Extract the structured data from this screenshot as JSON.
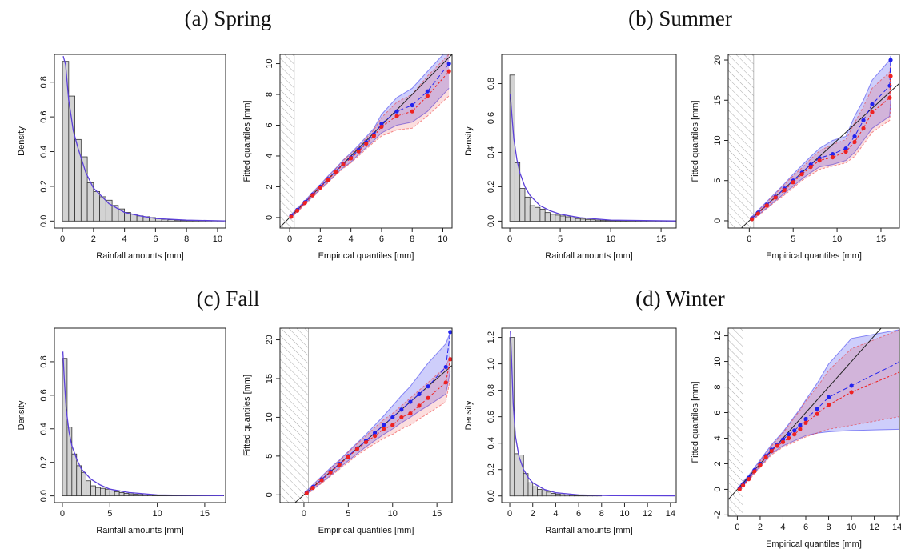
{
  "panels": [
    {
      "title": "(a) Spring"
    },
    {
      "title": "(b) Summer"
    },
    {
      "title": "(c) Fall"
    },
    {
      "title": "(d) Winter"
    }
  ],
  "chart_data": [
    {
      "type": "histogram",
      "xlabel": "Rainfall amounts [mm]",
      "ylabel": "Density",
      "bins": [
        0,
        0.4,
        0.8,
        1.2,
        1.6,
        2,
        2.4,
        2.8,
        3.2,
        3.6,
        4,
        4.4,
        4.8,
        5.2,
        5.6,
        6,
        6.4,
        6.8,
        7.2,
        7.6,
        8,
        8.4,
        8.8,
        9.2,
        9.6,
        10,
        10.4
      ],
      "counts": [
        0.92,
        0.72,
        0.47,
        0.37,
        0.22,
        0.17,
        0.14,
        0.12,
        0.09,
        0.07,
        0.05,
        0.04,
        0.03,
        0.025,
        0.02,
        0.015,
        0.01,
        0.008,
        0.005,
        0.004,
        0.003,
        0.002,
        0.002,
        0.001,
        0.001,
        0.001
      ],
      "color": "#d3d3d3",
      "curve": {
        "color": "#5b3fd9",
        "x": [
          0.05,
          0.2,
          0.4,
          0.7,
          1,
          1.5,
          2,
          3,
          4,
          5,
          6,
          8,
          10.5
        ],
        "values": [
          0.95,
          0.9,
          0.7,
          0.52,
          0.42,
          0.28,
          0.19,
          0.1,
          0.05,
          0.03,
          0.015,
          0.005,
          0.001
        ]
      },
      "xlim": [
        -0.52,
        10.52
      ],
      "ylim": [
        -0.04,
        0.96
      ],
      "xticks": [
        0,
        2,
        4,
        6,
        8,
        10
      ],
      "yticks": [
        {
          "value": 0,
          "label": "0.0"
        },
        {
          "value": 0.2,
          "label": "0.2"
        },
        {
          "value": 0.4,
          "label": "0.4"
        },
        {
          "value": 0.6,
          "label": "0.6"
        },
        {
          "value": 0.8,
          "label": "0.8"
        }
      ]
    },
    {
      "type": "qq",
      "xlabel": "Empirical quantiles [mm]",
      "ylabel": "Fitted quantiles [mm]",
      "threshold": 0.3,
      "x": [
        0.1,
        0.5,
        1,
        1.5,
        2,
        2.5,
        3,
        3.5,
        4,
        4.5,
        5,
        5.5,
        6,
        7,
        8,
        9,
        10.4
      ],
      "series": [
        {
          "color": "#2222ee",
          "values": [
            0.1,
            0.5,
            1,
            1.5,
            2,
            2.5,
            3,
            3.5,
            3.9,
            4.4,
            4.9,
            5.4,
            6.1,
            6.9,
            7.3,
            8.2,
            10.0
          ],
          "lower": [
            0,
            0.4,
            0.9,
            1.35,
            1.85,
            2.3,
            2.8,
            3.25,
            3.6,
            4.1,
            4.55,
            5.0,
            5.5,
            6.0,
            6.2,
            6.9,
            8.4
          ],
          "upper": [
            0.2,
            0.6,
            1.1,
            1.65,
            2.15,
            2.7,
            3.2,
            3.75,
            4.2,
            4.7,
            5.25,
            5.8,
            6.7,
            7.8,
            8.4,
            9.5,
            11.0
          ]
        },
        {
          "color": "#ee2222",
          "values": [
            0.05,
            0.45,
            0.95,
            1.45,
            1.95,
            2.45,
            2.95,
            3.45,
            3.85,
            4.3,
            4.8,
            5.3,
            5.9,
            6.6,
            6.9,
            7.9,
            9.5
          ],
          "lower": [
            0,
            0.35,
            0.85,
            1.3,
            1.8,
            2.25,
            2.75,
            3.2,
            3.55,
            4.0,
            4.45,
            4.9,
            5.3,
            5.7,
            5.8,
            6.6,
            7.9
          ],
          "upper": [
            0.15,
            0.55,
            1.05,
            1.6,
            2.1,
            2.65,
            3.15,
            3.7,
            4.15,
            4.6,
            5.15,
            5.7,
            6.5,
            7.5,
            8.0,
            9.2,
            10.6
          ]
        }
      ],
      "xlim": [
        -0.63,
        10.6
      ],
      "ylim": [
        -0.68,
        10.6
      ],
      "xticks": [
        0,
        2,
        4,
        6,
        8,
        10
      ],
      "yticks": [
        0,
        2,
        4,
        6,
        8,
        10
      ]
    },
    {
      "type": "histogram",
      "xlabel": "Rainfall amounts [mm]",
      "ylabel": "Density",
      "bins": [
        0,
        0.5,
        1,
        1.5,
        2,
        2.5,
        3,
        3.5,
        4,
        4.5,
        5,
        5.5,
        6,
        6.5,
        7,
        7.5,
        8,
        8.5,
        9,
        9.5,
        10,
        10.5,
        11,
        11.5,
        12,
        12.5,
        13,
        13.5,
        14,
        14.5,
        15,
        15.5,
        16,
        16.5
      ],
      "counts": [
        0.85,
        0.34,
        0.19,
        0.14,
        0.09,
        0.08,
        0.07,
        0.05,
        0.04,
        0.035,
        0.03,
        0.025,
        0.02,
        0.015,
        0.012,
        0.01,
        0.008,
        0.006,
        0.005,
        0.004,
        0.003,
        0.003,
        0.002,
        0.002,
        0.002,
        0.001,
        0.001,
        0.001,
        0.001,
        0.001,
        0.001,
        0.001,
        0.001
      ],
      "color": "#d3d3d3",
      "curve": {
        "color": "#5b3fd9",
        "x": [
          0.05,
          0.2,
          0.4,
          0.7,
          1,
          1.5,
          2,
          3,
          4,
          5,
          7,
          10,
          16.5
        ],
        "values": [
          0.74,
          0.62,
          0.48,
          0.36,
          0.28,
          0.2,
          0.15,
          0.09,
          0.06,
          0.04,
          0.02,
          0.006,
          0.001
        ]
      },
      "xlim": [
        -0.8,
        16.5
      ],
      "ylim": [
        -0.04,
        0.97
      ],
      "xticks": [
        0,
        5,
        10,
        15
      ],
      "yticks": [
        {
          "value": 0,
          "label": "0.0"
        },
        {
          "value": 0.2,
          "label": "0.2"
        },
        {
          "value": 0.4,
          "label": "0.4"
        },
        {
          "value": 0.6,
          "label": "0.6"
        },
        {
          "value": 0.8,
          "label": "0.8"
        }
      ]
    },
    {
      "type": "qq",
      "xlabel": "Empirical quantiles [mm]",
      "ylabel": "Fitted quantiles [mm]",
      "threshold": 0.5,
      "x": [
        0.3,
        1,
        2,
        3,
        4,
        5,
        6,
        7,
        8,
        9.5,
        11,
        12,
        13,
        14,
        16,
        16.1
      ],
      "series": [
        {
          "color": "#2222ee",
          "values": [
            0.3,
            1,
            2,
            3,
            4,
            5,
            6,
            7,
            7.8,
            8.3,
            9.0,
            10.5,
            12.5,
            14.5,
            16.8,
            20
          ],
          "lower": [
            0.1,
            0.7,
            1.6,
            2.5,
            3.4,
            4.3,
            5.2,
            6.0,
            6.7,
            7.0,
            7.5,
            8.5,
            10.0,
            11.5,
            13.0,
            15.0
          ],
          "upper": [
            0.5,
            1.3,
            2.4,
            3.5,
            4.6,
            5.8,
            6.9,
            8.0,
            9.0,
            10.0,
            10.5,
            13.0,
            15.0,
            17.5,
            20.0,
            20.5
          ]
        },
        {
          "color": "#ee2222",
          "values": [
            0.2,
            0.9,
            1.9,
            2.9,
            3.8,
            4.8,
            5.8,
            6.7,
            7.5,
            7.9,
            8.6,
            9.8,
            11.5,
            13.5,
            15.3,
            18
          ],
          "lower": [
            0.05,
            0.6,
            1.5,
            2.4,
            3.2,
            4.1,
            5.0,
            5.7,
            6.4,
            6.8,
            7.2,
            8.0,
            9.5,
            11.0,
            12.5,
            14.5
          ],
          "upper": [
            0.4,
            1.2,
            2.3,
            3.4,
            4.5,
            5.6,
            6.6,
            7.7,
            8.7,
            9.5,
            10.1,
            12.2,
            14.2,
            16.5,
            18.5,
            19.5
          ]
        }
      ],
      "xlim": [
        -2.4,
        17.1
      ],
      "ylim": [
        -0.9,
        20.7
      ],
      "xticks": [
        0,
        5,
        10,
        15
      ],
      "yticks": [
        0,
        5,
        10,
        15,
        20
      ]
    },
    {
      "type": "histogram",
      "xlabel": "Rainfall amounts [mm]",
      "ylabel": "Density",
      "bins": [
        0,
        0.5,
        1,
        1.5,
        2,
        2.5,
        3,
        3.5,
        4,
        4.5,
        5,
        5.5,
        6,
        6.5,
        7,
        7.5,
        8,
        8.5,
        9,
        9.5,
        10,
        10.5,
        11,
        11.5,
        12,
        12.5,
        13,
        13.5,
        14,
        14.5,
        15,
        15.5,
        16,
        16.5,
        17
      ],
      "counts": [
        0.82,
        0.41,
        0.25,
        0.18,
        0.14,
        0.09,
        0.06,
        0.05,
        0.045,
        0.04,
        0.03,
        0.025,
        0.02,
        0.015,
        0.012,
        0.01,
        0.008,
        0.006,
        0.005,
        0.004,
        0.003,
        0.003,
        0.002,
        0.002,
        0.001,
        0.001,
        0.001,
        0.001,
        0.001,
        0.001,
        0.001,
        0.001,
        0.001,
        0.001
      ],
      "color": "#d3d3d3",
      "curve": {
        "color": "#5b3fd9",
        "x": [
          0.05,
          0.2,
          0.4,
          0.7,
          1,
          1.5,
          2,
          3,
          4,
          5,
          7,
          10,
          17
        ],
        "values": [
          0.86,
          0.7,
          0.52,
          0.38,
          0.3,
          0.22,
          0.16,
          0.1,
          0.065,
          0.04,
          0.02,
          0.006,
          0.001
        ]
      },
      "xlim": [
        -0.84,
        17.2
      ],
      "ylim": [
        -0.04,
        1.0
      ],
      "xticks": [
        0,
        5,
        10,
        15
      ],
      "yticks": [
        {
          "value": 0,
          "label": "0.0"
        },
        {
          "value": 0.2,
          "label": "0.2"
        },
        {
          "value": 0.4,
          "label": "0.4"
        },
        {
          "value": 0.6,
          "label": "0.6"
        },
        {
          "value": 0.8,
          "label": "0.8"
        }
      ]
    },
    {
      "type": "qq",
      "xlabel": "Empirical quantiles [mm]",
      "ylabel": "Fitted quantiles [mm]",
      "threshold": 0.5,
      "x": [
        0.3,
        1,
        2,
        3,
        4,
        5,
        6,
        7,
        8,
        9,
        10,
        11,
        12,
        13,
        14,
        16,
        16.5
      ],
      "series": [
        {
          "color": "#2222ee",
          "values": [
            0.3,
            1,
            2,
            3,
            4,
            5,
            6,
            7,
            8,
            9,
            10,
            11,
            12,
            13,
            14,
            16.5,
            21
          ],
          "lower": [
            0.1,
            0.7,
            1.6,
            2.5,
            3.5,
            4.4,
            5.3,
            6.2,
            7.0,
            7.8,
            8.5,
            9.3,
            10,
            10.8,
            11.5,
            13,
            16
          ],
          "upper": [
            0.5,
            1.3,
            2.4,
            3.5,
            4.5,
            5.6,
            6.7,
            7.8,
            9,
            10.2,
            11.5,
            12.8,
            14,
            15.5,
            17,
            19.5,
            21
          ]
        },
        {
          "color": "#ee2222",
          "values": [
            0.2,
            0.9,
            1.9,
            2.9,
            3.9,
            4.9,
            5.9,
            6.8,
            7.6,
            8.5,
            9,
            10,
            10.5,
            11.5,
            12.5,
            14.5,
            17.5
          ],
          "lower": [
            0.05,
            0.6,
            1.5,
            2.4,
            3.3,
            4.2,
            5.1,
            5.9,
            6.6,
            7.3,
            7.8,
            8.5,
            9,
            9.8,
            10.5,
            12,
            15
          ],
          "upper": [
            0.4,
            1.2,
            2.3,
            3.4,
            4.4,
            5.5,
            6.6,
            7.6,
            8.7,
            9.7,
            10.5,
            11.5,
            12.5,
            13.5,
            14.5,
            16.5,
            18
          ]
        }
      ],
      "xlim": [
        -2.7,
        16.7
      ],
      "ylim": [
        -1.0,
        21.5
      ],
      "xticks": [
        0,
        5,
        10,
        15
      ],
      "yticks": [
        0,
        5,
        10,
        15,
        20
      ]
    },
    {
      "type": "histogram",
      "xlabel": "Rainfall amounts [mm]",
      "ylabel": "Density",
      "bins": [
        0,
        0.4,
        0.8,
        1.2,
        1.6,
        2,
        2.4,
        2.8,
        3.2,
        3.6,
        4,
        4.4,
        4.8,
        5.2,
        5.6,
        6,
        6.4,
        6.8,
        7.2,
        7.6,
        8
      ],
      "counts": [
        1.2,
        0.32,
        0.31,
        0.17,
        0.1,
        0.07,
        0.05,
        0.04,
        0.03,
        0.02,
        0.015,
        0.01,
        0.008,
        0.006,
        0.005,
        0.004,
        0.003,
        0.002,
        0.002,
        0.001
      ],
      "color": "#d3d3d3",
      "curve": {
        "color": "#5b3fd9",
        "x": [
          0.05,
          0.15,
          0.3,
          0.5,
          0.8,
          1.2,
          1.6,
          2,
          3,
          4,
          6,
          9,
          14.4
        ],
        "values": [
          1.25,
          1.05,
          0.7,
          0.45,
          0.3,
          0.2,
          0.14,
          0.1,
          0.05,
          0.025,
          0.008,
          0.002,
          0.001
        ]
      },
      "xlim": [
        -0.7,
        14.5
      ],
      "ylim": [
        -0.05,
        1.27
      ],
      "xticks": [
        0,
        2,
        4,
        6,
        8,
        10,
        12,
        14
      ],
      "yticks": [
        {
          "value": 0,
          "label": "0.0"
        },
        {
          "value": 0.2,
          "label": "0.2"
        },
        {
          "value": 0.4,
          "label": "0.4"
        },
        {
          "value": 0.6,
          "label": "0.6"
        },
        {
          "value": 0.8,
          "label": "0.8"
        },
        {
          "value": 1,
          "label": "1.0"
        },
        {
          "value": 1.2,
          "label": "1.2"
        }
      ]
    },
    {
      "type": "qq",
      "xlabel": "Empirical quantiles [mm]",
      "ylabel": "Fitted quantiles [mm]",
      "threshold": 0.5,
      "x": [
        0.2,
        0.5,
        1,
        1.5,
        2,
        2.5,
        3,
        3.5,
        4,
        4.5,
        5,
        5.5,
        6,
        7,
        8,
        10,
        14.3
      ],
      "series": [
        {
          "color": "#2222ee",
          "values": [
            0.1,
            0.4,
            0.9,
            1.5,
            2.0,
            2.6,
            3.1,
            3.5,
            3.9,
            4.3,
            4.6,
            5.0,
            5.5,
            6.3,
            7.2,
            8.1,
            10
          ],
          "lower": [
            0,
            0.3,
            0.8,
            1.3,
            1.8,
            2.3,
            2.8,
            3.1,
            3.4,
            3.6,
            3.8,
            4.0,
            4.2,
            4.4,
            4.5,
            4.6,
            4.7
          ],
          "upper": [
            0.3,
            0.6,
            1.1,
            1.7,
            2.3,
            2.9,
            3.5,
            4.0,
            4.5,
            5.1,
            5.7,
            6.3,
            7.0,
            8.3,
            9.8,
            11.8,
            12.5
          ]
        },
        {
          "color": "#ee2222",
          "values": [
            0,
            0.3,
            0.8,
            1.4,
            1.9,
            2.5,
            3.0,
            3.4,
            3.7,
            4.0,
            4.3,
            4.7,
            5.2,
            5.9,
            6.6,
            7.6,
            9.2
          ],
          "lower": [
            0,
            0.2,
            0.7,
            1.2,
            1.7,
            2.2,
            2.7,
            3.0,
            3.3,
            3.5,
            3.7,
            3.9,
            4.1,
            4.4,
            4.7,
            5.0,
            5.7
          ],
          "upper": [
            0.2,
            0.5,
            1.0,
            1.6,
            2.2,
            2.8,
            3.4,
            3.9,
            4.4,
            5.0,
            5.6,
            6.2,
            6.9,
            8.0,
            9.3,
            11.0,
            12.5
          ]
        }
      ],
      "xlim": [
        -0.8,
        14.2
      ],
      "ylim": [
        -2.1,
        12.6
      ],
      "xticks": [
        0,
        2,
        4,
        6,
        8,
        10,
        12,
        14
      ],
      "yticks": [
        -2,
        0,
        2,
        4,
        6,
        8,
        10,
        12
      ]
    }
  ]
}
